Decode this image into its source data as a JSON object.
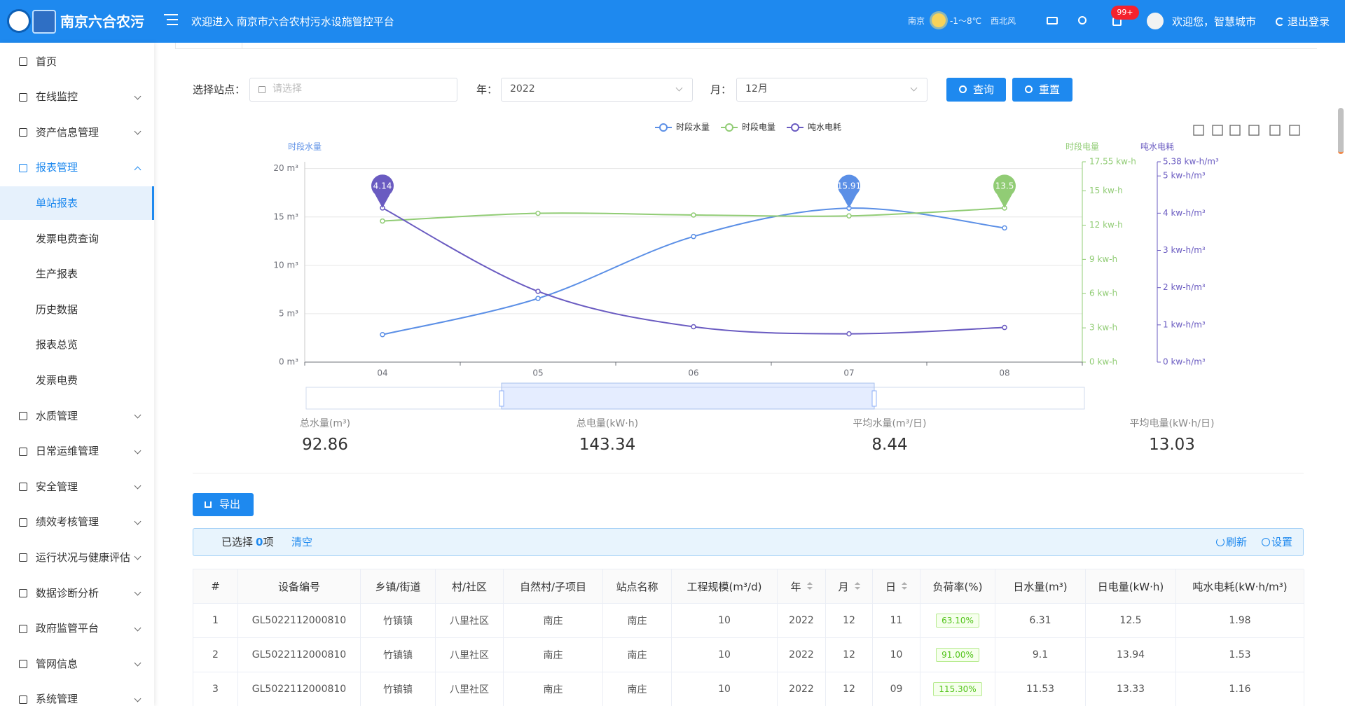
{
  "header": {
    "logo_text": "南京六合农污",
    "welcome": "欢迎进入 南京市六合农村污水设施管控平台",
    "city": "南京",
    "temperature": "-1～8℃",
    "wind": "西北风",
    "badge": "99+",
    "user": "欢迎您，智慧城市",
    "logout": "退出登录"
  },
  "sidebar": {
    "items": [
      {
        "label": "首页"
      },
      {
        "label": "在线监控",
        "arrow": true
      },
      {
        "label": "资产信息管理",
        "arrow": true
      },
      {
        "label": "报表管理",
        "arrow": true,
        "expanded": true,
        "children": [
          {
            "label": "单站报表",
            "active": true
          },
          {
            "label": "发票电费查询"
          },
          {
            "label": "生产报表"
          },
          {
            "label": "历史数据"
          },
          {
            "label": "报表总览"
          },
          {
            "label": "发票电费"
          }
        ]
      },
      {
        "label": "水质管理",
        "arrow": true
      },
      {
        "label": "日常运维管理",
        "arrow": true
      },
      {
        "label": "安全管理",
        "arrow": true
      },
      {
        "label": "绩效考核管理",
        "arrow": true
      },
      {
        "label": "运行状况与健康评估",
        "arrow": true
      },
      {
        "label": "数据诊断分析",
        "arrow": true
      },
      {
        "label": "政府监管平台",
        "arrow": true
      },
      {
        "label": "管网信息",
        "arrow": true
      },
      {
        "label": "系统管理",
        "arrow": true
      }
    ]
  },
  "filters": {
    "station_label": "选择站点：",
    "station_placeholder": "请选择",
    "year_label": "年：",
    "year": "2022",
    "month_label": "月：",
    "month": "12月",
    "query": "查询",
    "reset": "重置"
  },
  "chart_data": {
    "type": "line",
    "categories": [
      "04",
      "05",
      "06",
      "07",
      "08"
    ],
    "smooth": true,
    "mark_max": true,
    "y_name": "时段水量",
    "y2_name": "时段电量",
    "y3_name": "吨水电耗",
    "ylim": [
      0,
      20.7
    ],
    "yticks": [
      {
        "value": 0,
        "label": "0 m³"
      },
      {
        "value": 5,
        "label": "5 m³"
      },
      {
        "value": 10,
        "label": "10 m³"
      },
      {
        "value": 15,
        "label": "15 m³"
      },
      {
        "value": 20,
        "label": "20 m³"
      }
    ],
    "y2lim": [
      0,
      17.55
    ],
    "y2ticks": [
      {
        "value": 0,
        "label": "0 kw-h"
      },
      {
        "value": 3,
        "label": "3 kw-h"
      },
      {
        "value": 6,
        "label": "6 kw-h"
      },
      {
        "value": 9,
        "label": "9 kw-h"
      },
      {
        "value": 12,
        "label": "12 kw-h"
      },
      {
        "value": 15,
        "label": "15 kw-h"
      },
      {
        "value": 17.55,
        "label": "17.55 kw-h"
      }
    ],
    "y3lim": [
      0,
      5.38
    ],
    "y3ticks": [
      {
        "value": 0,
        "label": "0 kw-h/m³"
      },
      {
        "value": 1,
        "label": "1 kw-h/m³"
      },
      {
        "value": 2,
        "label": "2 kw-h/m³"
      },
      {
        "value": 3,
        "label": "3 kw-h/m³"
      },
      {
        "value": 4,
        "label": "4 kw-h/m³"
      },
      {
        "value": 5,
        "label": "5 kw-h/m³"
      },
      {
        "value": 5.38,
        "label": "5.38 kw-h/m³"
      }
    ],
    "grid": true,
    "series": [
      {
        "name": "时段水量",
        "color": "#5b8fe6",
        "axis": "y",
        "values": [
          2.84,
          6.58,
          12.98,
          15.91,
          13.87
        ]
      },
      {
        "name": "时段电量",
        "color": "#91cc75",
        "axis": "y2",
        "values": [
          12.36,
          13.04,
          12.89,
          12.81,
          13.5
        ]
      },
      {
        "name": "吨水电耗",
        "color": "#6a5bc1",
        "axis": "y3",
        "values": [
          4.14,
          1.9,
          0.95,
          0.76,
          0.93
        ]
      }
    ]
  },
  "stats": [
    {
      "label": "总水量(m³)",
      "value": 92.86
    },
    {
      "label": "总电量(kW·h)",
      "value": 143.34
    },
    {
      "label": "平均水量(m³/日)",
      "value": 8.44
    },
    {
      "label": "平均电量(kW·h/日)",
      "value": 13.03
    }
  ],
  "export": "导出",
  "selection": {
    "prefix": "已选择",
    "count": 0,
    "suffix": "项",
    "clear": "清空",
    "refresh": "刷新",
    "settings": "设置"
  },
  "table": {
    "columns": [
      {
        "label": "#"
      },
      {
        "label": "设备编号"
      },
      {
        "label": "乡镇/街道"
      },
      {
        "label": "村/社区"
      },
      {
        "label": "自然村/子项目"
      },
      {
        "label": "站点名称"
      },
      {
        "label": "工程规模(m³/d)"
      },
      {
        "label": "年",
        "sortable": true
      },
      {
        "label": "月",
        "sortable": true
      },
      {
        "label": "日",
        "sortable": true
      },
      {
        "label": "负荷率(%)",
        "tag": true
      },
      {
        "label": "日水量(m³)"
      },
      {
        "label": "日电量(kW·h)"
      },
      {
        "label": "吨水电耗(kW·h/m³)"
      }
    ],
    "rows": [
      [
        "1",
        "GL5022112000810",
        "竹镇镇",
        "八里社区",
        "南庄",
        "南庄",
        "10",
        "2022",
        "12",
        "11",
        "63.10%",
        "6.31",
        "12.5",
        "1.98"
      ],
      [
        "2",
        "GL5022112000810",
        "竹镇镇",
        "八里社区",
        "南庄",
        "南庄",
        "10",
        "2022",
        "12",
        "10",
        "91.00%",
        "9.1",
        "13.94",
        "1.53"
      ],
      [
        "3",
        "GL5022112000810",
        "竹镇镇",
        "八里社区",
        "南庄",
        "南庄",
        "10",
        "2022",
        "12",
        "09",
        "115.30%",
        "11.53",
        "13.33",
        "1.16"
      ]
    ]
  }
}
